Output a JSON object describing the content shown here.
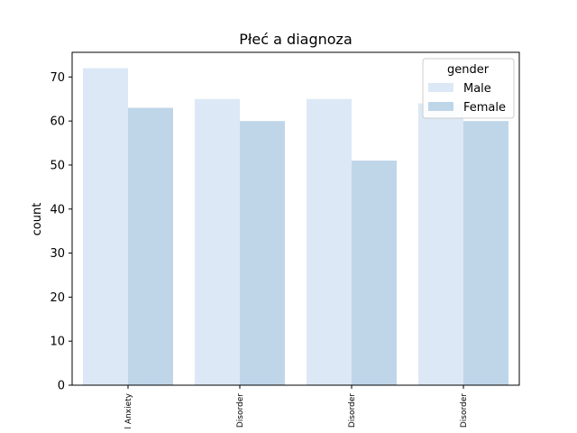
{
  "chart_data": {
    "type": "bar",
    "title": "Płeć a diagnoza",
    "xlabel": "",
    "ylabel": "count",
    "ylim": [
      0,
      75.6
    ],
    "yticks": [
      0,
      10,
      20,
      30,
      40,
      50,
      60,
      70
    ],
    "categories": [
      "l Anxiety",
      "Disorder",
      "Disorder",
      "Disorder"
    ],
    "series": [
      {
        "name": "Male",
        "color": "#dce8f5",
        "values": [
          72,
          65,
          65,
          64
        ]
      },
      {
        "name": "Female",
        "color": "#bfd6e9",
        "values": [
          63,
          60,
          51,
          60
        ]
      }
    ],
    "legend": {
      "title": "gender",
      "position": "top-right"
    }
  }
}
